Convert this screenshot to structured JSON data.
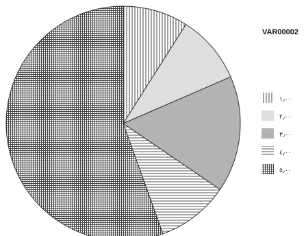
{
  "chart_data": {
    "type": "pie",
    "legend_title": "VAR00002",
    "legend_position": "right",
    "start_angle_deg": 0,
    "direction": "clockwise",
    "categories": [
      "١٫٠٠",
      "٢٫٠٠",
      "٣٫٠٠",
      "٤٫٠٠",
      "٥٫٠٠"
    ],
    "values": [
      9,
      9.5,
      16,
      10,
      55.5
    ],
    "series_styles": [
      {
        "pattern": "vertical-lines",
        "fill": "#ffffff",
        "stroke": "#333333"
      },
      {
        "pattern": "solid",
        "fill": "#dedede",
        "stroke": "#333333"
      },
      {
        "pattern": "solid",
        "fill": "#b3b3b3",
        "stroke": "#333333"
      },
      {
        "pattern": "horizontal-lines",
        "fill": "#ffffff",
        "stroke": "#333333"
      },
      {
        "pattern": "crosshatch",
        "fill": "#ffffff",
        "stroke": "#333333"
      }
    ]
  }
}
